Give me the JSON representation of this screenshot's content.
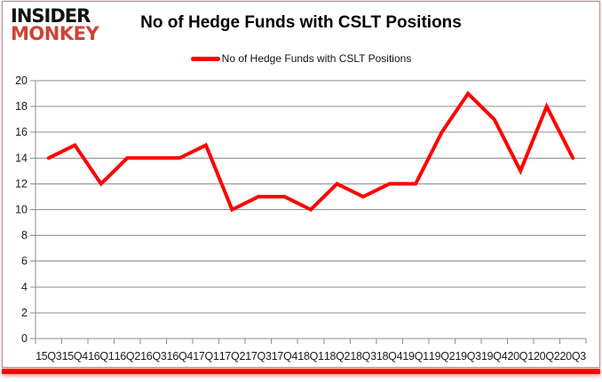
{
  "logo": {
    "line1": "INSIDER",
    "line2": "MONKEY"
  },
  "header": {
    "title": "No of Hedge Funds with CSLT Positions"
  },
  "legend": {
    "label": "No of Hedge Funds with CSLT Positions",
    "marker_color": "#ff0000"
  },
  "colors": {
    "logo_red": "#cd4335",
    "series_red": "#ff0000",
    "gridline_gray": "#8e8e8e",
    "frame_border": "#9b9b9b",
    "bottom_bar_red": "#fe0000"
  },
  "chart_data": {
    "type": "line",
    "title": "No of Hedge Funds with CSLT Positions",
    "categories": [
      "15Q3",
      "15Q4",
      "16Q1",
      "16Q2",
      "16Q3",
      "16Q4",
      "17Q1",
      "17Q2",
      "17Q3",
      "17Q4",
      "18Q1",
      "18Q2",
      "18Q3",
      "18Q4",
      "19Q1",
      "19Q2",
      "19Q3",
      "19Q4",
      "20Q1",
      "20Q2",
      "20Q3"
    ],
    "series": [
      {
        "name": "No of Hedge Funds with CSLT Positions",
        "color": "#ff0000",
        "values": [
          14,
          15,
          12,
          14,
          14,
          14,
          15,
          10,
          11,
          11,
          10,
          12,
          11,
          12,
          12,
          16,
          19,
          17,
          13,
          18,
          14
        ]
      }
    ],
    "ylim": [
      0,
      20
    ],
    "yticks": [
      0,
      2,
      4,
      6,
      8,
      10,
      12,
      14,
      16,
      18,
      20
    ],
    "grid": true,
    "gridline_color": "#8e8e8e",
    "axis_text_color": "#1a1a1a",
    "legend_position": "top-center",
    "xlabel": "",
    "ylabel": ""
  }
}
